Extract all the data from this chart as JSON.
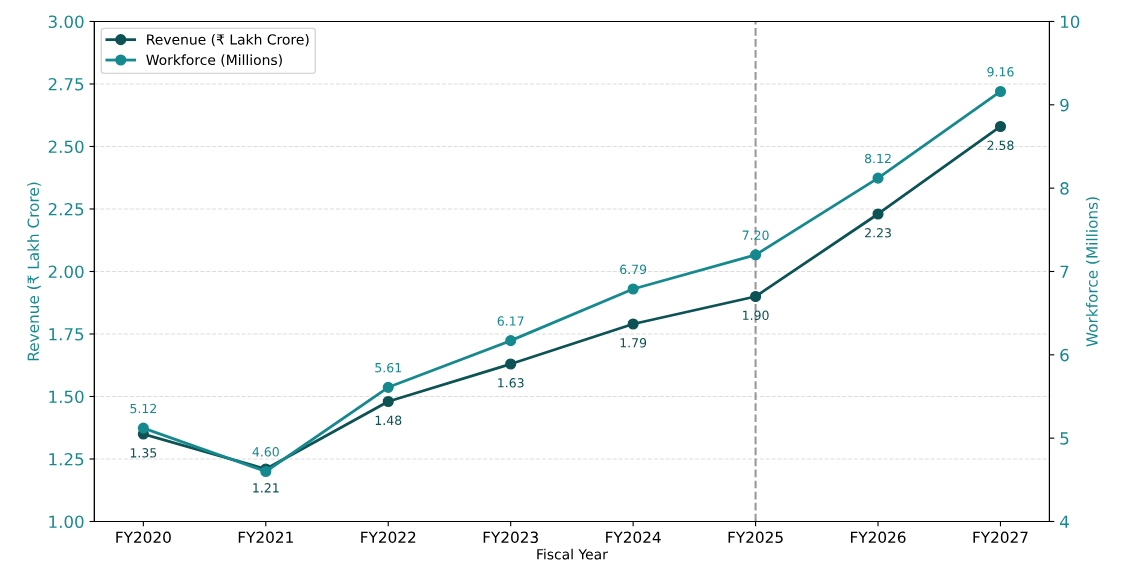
{
  "chart_data": {
    "type": "line",
    "xlabel": "Fiscal Year",
    "ylabel": "Revenue (₹ Lakh Crore)",
    "y2label": "Workforce (Millions)",
    "categories": [
      "FY2020",
      "FY2021",
      "FY2022",
      "FY2023",
      "FY2024",
      "FY2025",
      "FY2026",
      "FY2027"
    ],
    "series": [
      {
        "name": "Revenue (₹ Lakh Crore)",
        "color": "#0d5254",
        "values": [
          1.35,
          1.21,
          1.48,
          1.63,
          1.79,
          1.9,
          2.23,
          2.58
        ],
        "value_labels": [
          "1.35",
          "1.21",
          "1.48",
          "1.63",
          "1.79",
          "1.90",
          "2.23",
          "2.58"
        ]
      },
      {
        "name": "Workforce (Millions)",
        "color": "#16898e",
        "axis": "y2",
        "values": [
          5.12,
          4.6,
          5.61,
          6.17,
          6.79,
          7.2,
          8.12,
          9.16
        ],
        "value_labels": [
          "5.12",
          "4.60",
          "5.61",
          "6.17",
          "6.79",
          "7.20",
          "8.12",
          "9.16"
        ]
      }
    ],
    "ylim": [
      1.0,
      3.0
    ],
    "yticks": [
      {
        "value": 1.0,
        "label": "1.00"
      },
      {
        "value": 1.25,
        "label": "1.25"
      },
      {
        "value": 1.5,
        "label": "1.50"
      },
      {
        "value": 1.75,
        "label": "1.75"
      },
      {
        "value": 2.0,
        "label": "2.00"
      },
      {
        "value": 2.25,
        "label": "2.25"
      },
      {
        "value": 2.5,
        "label": "2.50"
      },
      {
        "value": 2.75,
        "label": "2.75"
      },
      {
        "value": 3.0,
        "label": "3.00"
      }
    ],
    "y2lim": [
      4,
      10
    ],
    "y2ticks": [
      4,
      5,
      6,
      7,
      8,
      9,
      10
    ],
    "ref_lines": [
      {
        "axis": "x",
        "value": "FY2025",
        "color": "#999999",
        "line_style": "dashed"
      }
    ],
    "grid": "y",
    "legend": "top left",
    "marker": "circle",
    "line_style": "solid"
  }
}
